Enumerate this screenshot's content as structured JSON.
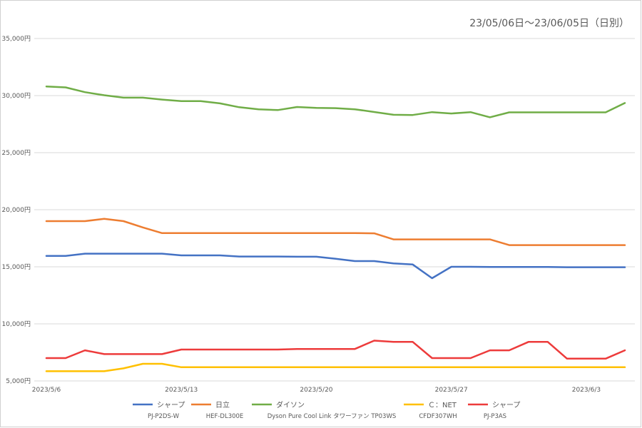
{
  "chart_data": {
    "type": "line",
    "title": "23/05/06日～23/06/05日（日別）",
    "ylim": [
      5000,
      35000
    ],
    "y_ticks": [
      {
        "value": 5000,
        "label": "5,000円"
      },
      {
        "value": 10000,
        "label": "10,000円"
      },
      {
        "value": 15000,
        "label": "15,000円"
      },
      {
        "value": 20000,
        "label": "20,000円"
      },
      {
        "value": 25000,
        "label": "25,000円"
      },
      {
        "value": 30000,
        "label": "30,000円"
      },
      {
        "value": 35000,
        "label": "35,000円"
      }
    ],
    "x": [
      "2023/5/6",
      "2023/5/7",
      "2023/5/8",
      "2023/5/9",
      "2023/5/10",
      "2023/5/11",
      "2023/5/12",
      "2023/5/13",
      "2023/5/14",
      "2023/5/15",
      "2023/5/16",
      "2023/5/17",
      "2023/5/18",
      "2023/5/19",
      "2023/5/20",
      "2023/5/21",
      "2023/5/22",
      "2023/5/23",
      "2023/5/24",
      "2023/5/25",
      "2023/5/26",
      "2023/5/27",
      "2023/5/28",
      "2023/5/29",
      "2023/5/30",
      "2023/5/31",
      "2023/6/1",
      "2023/6/2",
      "2023/6/3",
      "2023/6/4",
      "2023/6/5"
    ],
    "x_ticks": [
      {
        "index": 0,
        "label": "2023/5/6"
      },
      {
        "index": 7,
        "label": "2023/5/13"
      },
      {
        "index": 14,
        "label": "2023/5/20"
      },
      {
        "index": 21,
        "label": "2023/5/27"
      },
      {
        "index": 28,
        "label": "2023/6/3"
      }
    ],
    "grid": true,
    "legend_position": "bottom",
    "series": [
      {
        "name": "シャープ",
        "model": "PJ-P2DS-W",
        "color": "#4472c4",
        "values": [
          15950,
          15950,
          16150,
          16150,
          16150,
          16150,
          16150,
          16000,
          16000,
          16000,
          15900,
          15900,
          15900,
          15880,
          15880,
          15700,
          15500,
          15500,
          15300,
          15200,
          14000,
          15000,
          15000,
          14980,
          14980,
          14980,
          14980,
          14960,
          14960,
          14960,
          14960
        ]
      },
      {
        "name": "日立",
        "model": "HEF-DL300E",
        "color": "#ed7d31",
        "values": [
          19000,
          19000,
          19000,
          19200,
          19000,
          18450,
          17950,
          17950,
          17950,
          17950,
          17950,
          17950,
          17950,
          17950,
          17950,
          17950,
          17950,
          17930,
          17400,
          17400,
          17400,
          17400,
          17400,
          17400,
          16900,
          16900,
          16900,
          16900,
          16900,
          16900,
          16900
        ]
      },
      {
        "name": "ダイソン",
        "model": "Dyson Pure Cool Link タワーファン TP03WS",
        "color": "#70ad47",
        "values": [
          30800,
          30720,
          30300,
          30030,
          29820,
          29820,
          29650,
          29520,
          29520,
          29320,
          28980,
          28800,
          28730,
          29000,
          28920,
          28900,
          28800,
          28560,
          28320,
          28300,
          28550,
          28430,
          28550,
          28100,
          28530,
          28530,
          28530,
          28530,
          28530,
          28530,
          29350
        ]
      },
      {
        "name": "Ｃ：NET",
        "model": "CFDF307WH",
        "color": "#ffc000",
        "values": [
          5850,
          5850,
          5850,
          5850,
          6100,
          6500,
          6500,
          6200,
          6200,
          6200,
          6200,
          6200,
          6200,
          6200,
          6200,
          6200,
          6200,
          6200,
          6200,
          6200,
          6200,
          6200,
          6200,
          6200,
          6200,
          6200,
          6200,
          6200,
          6200,
          6200,
          6200
        ]
      },
      {
        "name": "シャープ",
        "model": "PJ-P3AS",
        "color": "#ed3b3b",
        "values": [
          7000,
          7000,
          7680,
          7350,
          7350,
          7350,
          7350,
          7750,
          7750,
          7750,
          7750,
          7750,
          7750,
          7800,
          7800,
          7800,
          7800,
          8530,
          8420,
          8420,
          7000,
          7000,
          7000,
          7680,
          7680,
          8420,
          8420,
          6950,
          6950,
          6950,
          7680
        ]
      }
    ]
  }
}
